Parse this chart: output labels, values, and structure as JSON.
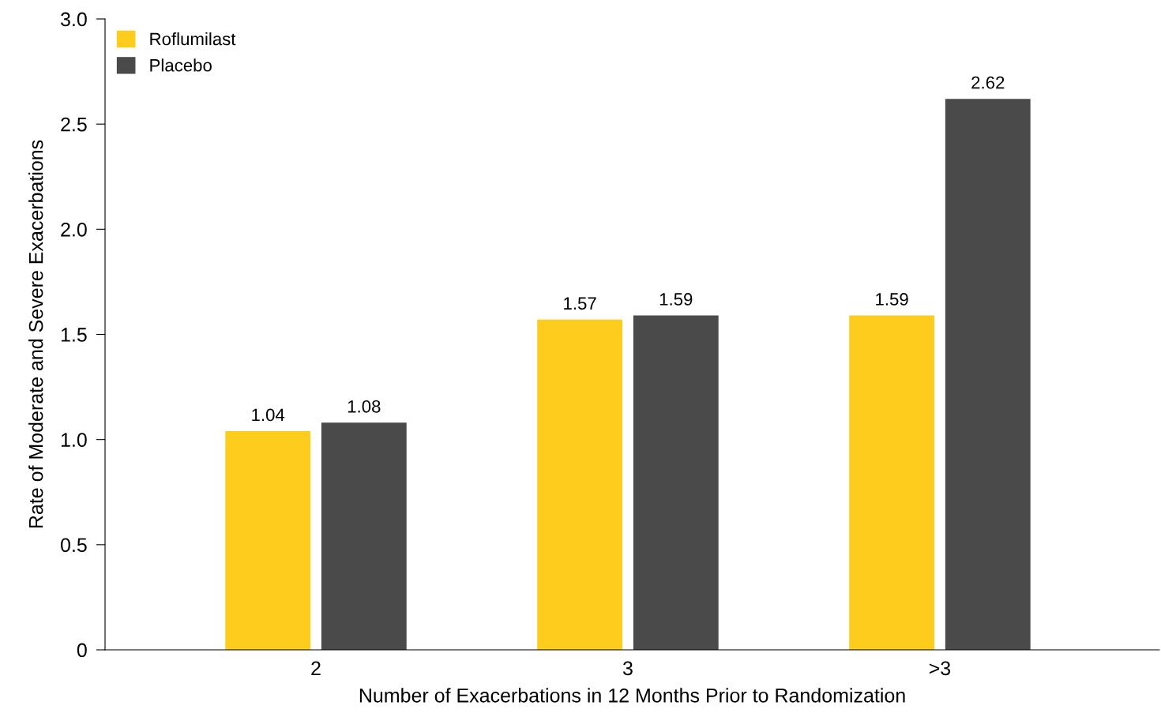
{
  "chart_data": {
    "type": "bar",
    "xlabel": "Number of Exacerbations in 12 Months Prior to Randomization",
    "ylabel": "Rate of Moderate and Severe Exacerbations",
    "categories": [
      "2",
      "3",
      ">3"
    ],
    "series": [
      {
        "name": "Roflumilast",
        "color": "#fdcc1c",
        "values": [
          1.04,
          1.57,
          1.59
        ]
      },
      {
        "name": "Placebo",
        "color": "#4a4a4a",
        "values": [
          1.08,
          1.59,
          2.62
        ]
      }
    ],
    "ylim": [
      0,
      3.0
    ],
    "yticks": [
      0,
      {
        "value": 0.5,
        "label": "0.5"
      },
      {
        "value": 1.0,
        "label": "1.0"
      },
      {
        "value": 1.5,
        "label": "1.5"
      },
      {
        "value": 2.0,
        "label": "2.0"
      },
      {
        "value": 2.5,
        "label": "2.5"
      },
      {
        "value": 3.0,
        "label": "3.0"
      }
    ],
    "data_labels": true,
    "legend": "top left",
    "grid": false
  }
}
